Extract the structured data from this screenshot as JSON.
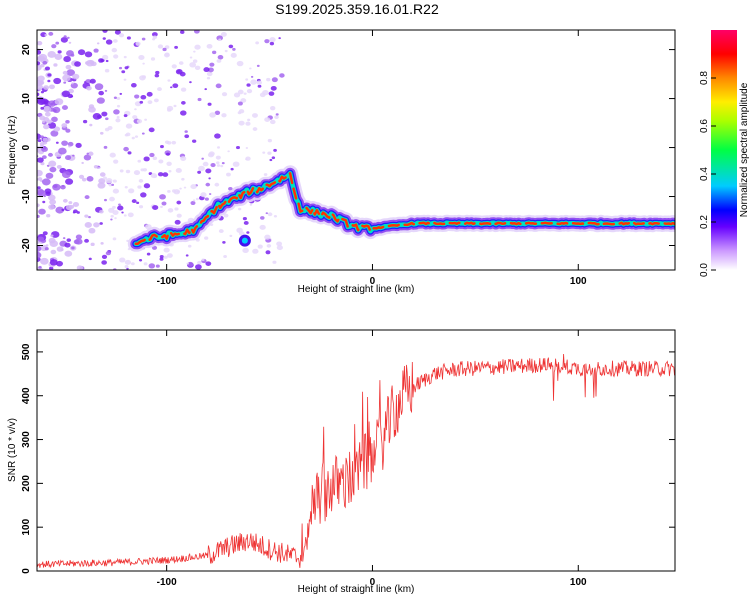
{
  "title": "S199.2025.359.16.01.R22",
  "chart_data": [
    {
      "type": "heatmap",
      "name": "spectrogram",
      "xlabel": "Height of straight line (km)",
      "ylabel": "Frequency (Hz)",
      "xlim": [
        -163,
        147
      ],
      "ylim": [
        -25,
        24
      ],
      "xticks": [
        -100,
        0,
        100
      ],
      "yticks": [
        -20,
        -10,
        0,
        10,
        20
      ],
      "colorbar": {
        "label": "Normalized spectral amplitude",
        "range": [
          0,
          1
        ],
        "ticks": [
          0.0,
          0.2,
          0.4,
          0.6,
          0.8
        ]
      },
      "ridge": {
        "x": [
          -115,
          -108,
          -100,
          -92,
          -85,
          -80,
          -75,
          -70,
          -65,
          -60,
          -55,
          -50,
          -45,
          -40,
          -38,
          -35,
          -30,
          -25,
          -20,
          -15,
          -10,
          -5,
          0,
          10,
          20,
          30,
          40,
          60,
          80,
          100,
          120,
          147
        ],
        "y": [
          -19.5,
          -18.5,
          -18,
          -17.5,
          -16.5,
          -14,
          -12,
          -11,
          -10,
          -9,
          -8.5,
          -7.5,
          -6.5,
          -5.5,
          -9,
          -12.5,
          -13,
          -13.5,
          -14,
          -15,
          -16,
          -16.5,
          -16.5,
          -16,
          -15.5,
          -15.5,
          -15.5,
          -15.5,
          -15.5,
          -15.5,
          -15.5,
          -15.5
        ]
      }
    },
    {
      "type": "line",
      "name": "snr",
      "xlabel": "Height of straight line (km)",
      "ylabel": "SNR (10 * v/v)",
      "xlim": [
        -163,
        147
      ],
      "ylim": [
        0,
        550
      ],
      "xticks": [
        -100,
        0,
        100
      ],
      "yticks": [
        0,
        100,
        200,
        300,
        400,
        500
      ],
      "color": "#ee3333",
      "trend": {
        "x": [
          -163,
          -120,
          -100,
          -80,
          -70,
          -60,
          -50,
          -40,
          -35,
          -32,
          -30,
          -25,
          -20,
          -15,
          -10,
          -5,
          0,
          5,
          10,
          15,
          20,
          30,
          40,
          60,
          80,
          90,
          100,
          110,
          120,
          147
        ],
        "y": [
          15,
          20,
          25,
          35,
          55,
          70,
          50,
          35,
          30,
          60,
          140,
          175,
          195,
          200,
          210,
          240,
          260,
          300,
          360,
          400,
          420,
          450,
          460,
          465,
          470,
          470,
          462,
          462,
          462,
          462
        ]
      }
    }
  ]
}
